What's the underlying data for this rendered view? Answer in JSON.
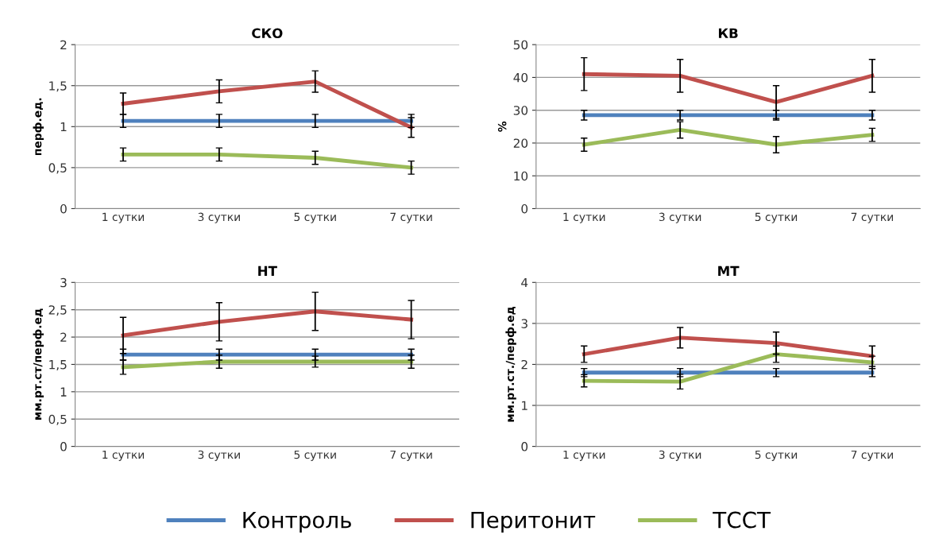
{
  "chart_data": [
    {
      "type": "line",
      "title": "СКО",
      "ylabel": "перф.ед.",
      "categories": [
        "1 сутки",
        "3 сутки",
        "5 сутки",
        "7 сутки"
      ],
      "ylim": [
        0,
        2
      ],
      "yticks": [
        0,
        {
          "value": 0.5,
          "label": "0,5"
        },
        1,
        {
          "value": 1.5,
          "label": "1,5"
        },
        2
      ],
      "grid": "y",
      "marker": "none",
      "legend": "bottom",
      "series": [
        {
          "name": "Контроль",
          "color": "#4f81bd",
          "values": [
            1.07,
            1.07,
            1.07,
            1.07
          ],
          "errors": [
            0.08,
            0.08,
            0.08,
            0.08
          ]
        },
        {
          "name": "Перитонит",
          "color": "#c0504d",
          "values": [
            1.28,
            1.43,
            1.55,
            0.99
          ],
          "errors": [
            0.13,
            0.14,
            0.13,
            0.12
          ]
        },
        {
          "name": "ТССТ",
          "color": "#9bbb59",
          "values": [
            0.66,
            0.66,
            0.62,
            0.5
          ],
          "errors": [
            0.08,
            0.08,
            0.08,
            0.08
          ]
        }
      ]
    },
    {
      "type": "line",
      "title": "КВ",
      "ylabel": "%",
      "categories": [
        "1 сутки",
        "3 сутки",
        "5 сутки",
        "7 сутки"
      ],
      "ylim": [
        0,
        50
      ],
      "yticks": [
        0,
        10,
        20,
        30,
        40,
        50
      ],
      "grid": "y",
      "marker": "none",
      "series": [
        {
          "color": "#4f81bd",
          "values": [
            28.5,
            28.5,
            28.5,
            28.5
          ],
          "errors": [
            1.5,
            1.5,
            1.5,
            1.5
          ]
        },
        {
          "color": "#c0504d",
          "values": [
            41,
            40.5,
            32.5,
            40.5
          ],
          "errors": [
            5,
            5,
            5,
            5
          ]
        },
        {
          "color": "#9bbb59",
          "values": [
            19.5,
            24,
            19.5,
            22.5
          ],
          "errors": [
            2,
            2.5,
            2.5,
            2
          ]
        }
      ]
    },
    {
      "type": "line",
      "title": "НТ",
      "ylabel": "мм.рт.ст/перф.ед",
      "categories": [
        "1 сутки",
        "3 сутки",
        "5 сутки",
        "7 сутки"
      ],
      "ylim": [
        0,
        3
      ],
      "yticks": [
        0,
        {
          "value": 0.5,
          "label": "0,5"
        },
        1,
        {
          "value": 1.5,
          "label": "1,5"
        },
        2,
        {
          "value": 2.5,
          "label": "2,5"
        },
        3
      ],
      "grid": "y",
      "marker": "none",
      "series": [
        {
          "color": "#4f81bd",
          "values": [
            1.68,
            1.68,
            1.68,
            1.68
          ],
          "errors": [
            0.1,
            0.1,
            0.1,
            0.1
          ]
        },
        {
          "color": "#c0504d",
          "values": [
            2.03,
            2.28,
            2.47,
            2.32
          ],
          "errors": [
            0.33,
            0.35,
            0.35,
            0.35
          ]
        },
        {
          "color": "#9bbb59",
          "values": [
            1.45,
            1.55,
            1.55,
            1.55
          ],
          "errors": [
            0.13,
            0.12,
            0.1,
            0.12
          ]
        }
      ]
    },
    {
      "type": "line",
      "title": "МТ",
      "ylabel": "мм.рт.ст./перф.ед",
      "categories": [
        "1 сутки",
        "3 сутки",
        "5 сутки",
        "7 сутки"
      ],
      "ylim": [
        0,
        4
      ],
      "yticks": [
        0,
        1,
        2,
        3,
        4
      ],
      "grid": "y",
      "marker": "none",
      "series": [
        {
          "color": "#4f81bd",
          "values": [
            1.8,
            1.8,
            1.8,
            1.8
          ],
          "errors": [
            0.1,
            0.1,
            0.1,
            0.1
          ]
        },
        {
          "color": "#c0504d",
          "values": [
            2.25,
            2.65,
            2.52,
            2.2
          ],
          "errors": [
            0.2,
            0.25,
            0.27,
            0.25
          ]
        },
        {
          "color": "#9bbb59",
          "values": [
            1.6,
            1.58,
            2.25,
            2.05
          ],
          "errors": [
            0.15,
            0.18,
            0.2,
            0.15
          ]
        }
      ]
    }
  ]
}
